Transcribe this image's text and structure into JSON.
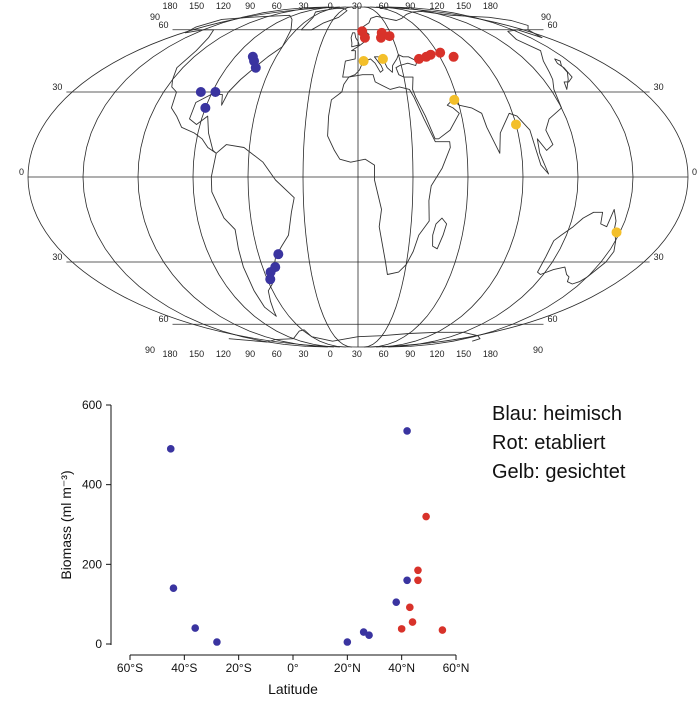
{
  "map": {
    "top_lon_labels": [
      "180",
      "150",
      "120",
      "90",
      "60",
      "30",
      "0",
      "30",
      "60",
      "90",
      "120",
      "150",
      "180"
    ],
    "bottom_lon_labels": [
      "180",
      "150",
      "120",
      "90",
      "60",
      "30",
      "0",
      "30",
      "60",
      "90",
      "120",
      "150",
      "180"
    ],
    "corner_labels": {
      "tl": "90",
      "tr": "90",
      "bl": "90",
      "br": "90"
    },
    "lat_labels": [
      "60",
      "30",
      "0",
      "30",
      "60"
    ],
    "colors": {
      "native": "#3a34a0",
      "established": "#d8322a",
      "sighted": "#f3bf2a"
    },
    "markers": {
      "native": [
        [
          -70,
          40
        ],
        [
          -74,
          43
        ],
        [
          -77,
          45
        ],
        [
          -97,
          30
        ],
        [
          -88,
          30
        ],
        [
          -90,
          24
        ],
        [
          -48,
          -27
        ],
        [
          -52,
          -32
        ],
        [
          -56,
          -34
        ],
        [
          -58,
          -37
        ]
      ],
      "established": [
        [
          4,
          59
        ],
        [
          6,
          55
        ],
        [
          20,
          55
        ],
        [
          22,
          58
        ],
        [
          28,
          56
        ],
        [
          50,
          45
        ],
        [
          54,
          46
        ],
        [
          62,
          47
        ],
        [
          44,
          44
        ],
        [
          70,
          45
        ]
      ],
      "sighted": [
        [
          4,
          43
        ],
        [
          18,
          44
        ],
        [
          58,
          27
        ],
        [
          90,
          18
        ],
        [
          148,
          -19
        ]
      ]
    }
  },
  "chart_data": {
    "type": "scatter",
    "xlabel": "Latitude",
    "ylabel": "Biomass (ml m⁻³)",
    "xlim": [
      -60,
      60
    ],
    "ylim": [
      0,
      600
    ],
    "x_ticks": [
      {
        "value": -60,
        "label": "60°S"
      },
      {
        "value": -40,
        "label": "40°S"
      },
      {
        "value": -20,
        "label": "20°S"
      },
      {
        "value": 0,
        "label": "0°"
      },
      {
        "value": 20,
        "label": "20°N"
      },
      {
        "value": 40,
        "label": "40°N"
      },
      {
        "value": 60,
        "label": "60°N"
      }
    ],
    "y_ticks": [
      0,
      200,
      400,
      600
    ],
    "series": [
      {
        "color": "#3a34a0",
        "points": [
          [
            -45,
            490
          ],
          [
            -44,
            140
          ],
          [
            -36,
            40
          ],
          [
            -28,
            5
          ],
          [
            20,
            5
          ],
          [
            26,
            30
          ],
          [
            28,
            22
          ],
          [
            38,
            105
          ],
          [
            42,
            535
          ],
          [
            42,
            160
          ]
        ]
      },
      {
        "color": "#d8322a",
        "points": [
          [
            40,
            38
          ],
          [
            43,
            92
          ],
          [
            44,
            55
          ],
          [
            46,
            185
          ],
          [
            46,
            160
          ],
          [
            49,
            320
          ],
          [
            55,
            35
          ]
        ]
      }
    ]
  },
  "legend": {
    "native": "Blau: heimisch",
    "established": "Rot: etabliert",
    "sighted": "Gelb: gesichtet"
  }
}
